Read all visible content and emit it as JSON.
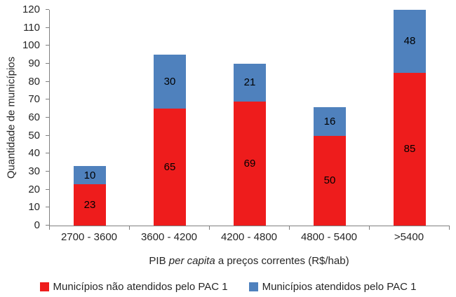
{
  "chart_data": {
    "type": "bar",
    "subtype": "stacked",
    "categories": [
      "2700 - 3600",
      "3600 - 4200",
      "4200 - 4800",
      "4800 - 5400",
      ">5400"
    ],
    "series": [
      {
        "name": "Municípios não atendidos pelo PAC 1",
        "color": "#ee1c1c",
        "values": [
          23,
          65,
          69,
          50,
          85
        ]
      },
      {
        "name": "Municípios atendidos pelo PAC 1",
        "color": "#4f81bd",
        "values": [
          10,
          30,
          21,
          16,
          48
        ]
      }
    ],
    "title": "",
    "ylabel": "Quantidade de municípios",
    "xlabel_prefix": "PIB ",
    "xlabel_italic": "per capita",
    "xlabel_suffix": " a preços correntes (R$/hab)",
    "ylim": [
      0,
      120
    ],
    "ytick_step": 10,
    "grid": false,
    "legend_position": "bottom",
    "axis_color": "#7f7f7f"
  }
}
